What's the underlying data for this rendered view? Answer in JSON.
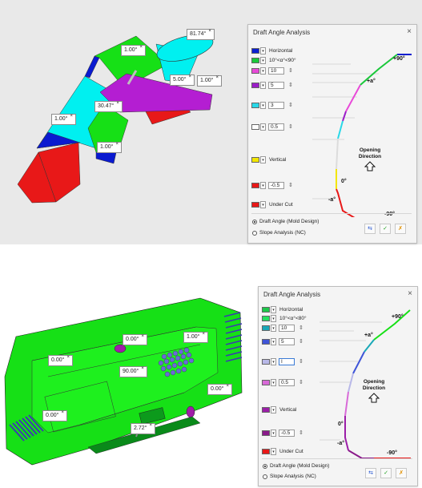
{
  "panel1": {
    "title": "Draft Angle Analysis",
    "close_icon": "×",
    "rows": [
      {
        "color": "#0b1fd0",
        "type": "label",
        "label": "Horizontal"
      },
      {
        "color": "#19c83a",
        "type": "label",
        "label": "10°<α°<90°"
      },
      {
        "color": "#e84ad8",
        "type": "input",
        "value": "10"
      },
      {
        "color": "#9b1ec8",
        "type": "input",
        "value": "5"
      },
      {
        "color": "#29d8e8",
        "type": "input",
        "value": "3"
      },
      {
        "color": "#ffffff",
        "type": "input",
        "value": "0.5"
      },
      {
        "color": "#f2e600",
        "type": "label",
        "label": "Vertical"
      },
      {
        "color": "#e81818",
        "type": "input",
        "value": "-0.5"
      },
      {
        "color": "#e81818",
        "type": "label",
        "label": "Under Cut"
      }
    ],
    "diagram": {
      "plus90": "+90°",
      "plus_a": "+a°",
      "zero": "0°",
      "minus_a": "-a°",
      "minus90": "-90°",
      "opening": "Opening",
      "direction": "Direction"
    },
    "modes": [
      {
        "label": "Draft Angle (Mold Design)",
        "selected": true
      },
      {
        "label": "Slope Analysis (NC)",
        "selected": false
      }
    ],
    "tools": [
      "export-icon",
      "check-icon",
      "close-tool-icon"
    ]
  },
  "panel2": {
    "title": "Draft Angle Analysis",
    "close_icon": "×",
    "rows": [
      {
        "color": "#1ec84a",
        "type": "label",
        "label": "Horizontal"
      },
      {
        "color": "#26e060",
        "type": "label",
        "label": "10°<α°<80°"
      },
      {
        "color": "#1aa8b8",
        "type": "input",
        "value": "10"
      },
      {
        "color": "#3f55d8",
        "type": "input",
        "value": "5"
      },
      {
        "color": "#b8b8e8",
        "type": "input",
        "value": "I"
      },
      {
        "color": "#d86ad8",
        "type": "input",
        "value": "0.5"
      },
      {
        "color": "#9b1ea8",
        "type": "label",
        "label": "Vertical"
      },
      {
        "color": "#8a1a8a",
        "type": "input",
        "value": "-0.5"
      },
      {
        "color": "#e81818",
        "type": "label",
        "label": "Under Cut"
      }
    ],
    "diagram": {
      "plus90": "+90°",
      "plus_a": "+a°",
      "zero": "0°",
      "minus_a": "-a°",
      "minus90": "-90°",
      "opening": "Opening",
      "direction": "Direction"
    },
    "modes": [
      {
        "label": "Draft Angle (Mold Design)",
        "selected": true
      },
      {
        "label": "Slope Analysis (NC)",
        "selected": false
      }
    ],
    "tools": [
      "export-icon",
      "check-icon",
      "close-tool-icon"
    ]
  },
  "callouts1": [
    "81.74°",
    "1.00°",
    "5.00°",
    "1.00°",
    "30.47°",
    "1.00°",
    "1.00°"
  ],
  "callouts2": [
    "0.00°",
    "1.00°",
    "0.00°",
    "90.00°",
    "0.00°",
    "0.00°",
    "2.72°"
  ],
  "close_mark": "×",
  "colors": {
    "cyan": "#00f0f0",
    "green": "#16e016",
    "red": "#e81818",
    "purple": "#b41ed2",
    "navy": "#0a1ad0"
  }
}
